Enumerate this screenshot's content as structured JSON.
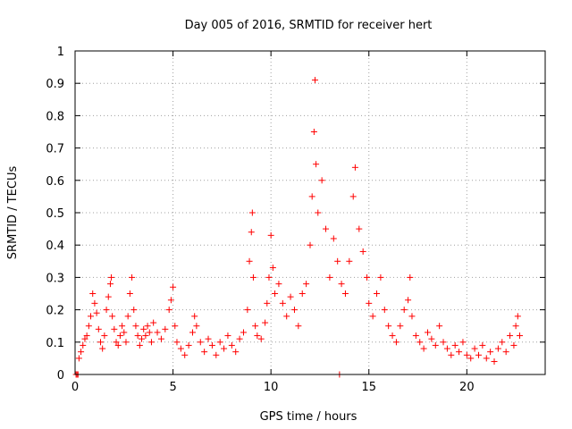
{
  "chart_data": {
    "type": "scatter",
    "title": "Day 005 of 2016, SRMTID for receiver hert",
    "xlabel": "GPS time / hours",
    "ylabel": "SRMTID / TECUs",
    "xlim": [
      0,
      24
    ],
    "ylim": [
      0,
      1
    ],
    "xticks": [
      0,
      5,
      10,
      15,
      20
    ],
    "yticks": [
      0,
      0.1,
      0.2,
      0.3,
      0.4,
      0.5,
      0.6,
      0.7,
      0.8,
      0.9,
      1
    ],
    "ytick_labels": [
      "0",
      "0.1",
      "0.2",
      "0.3",
      "0.4",
      "0.5",
      "0.6",
      "0.7",
      "0.8",
      "0.9",
      "1"
    ],
    "grid": true,
    "marker": "+",
    "color": "#ff0000",
    "series": [
      {
        "name": "SRMTID",
        "points": [
          [
            0.05,
            0.0
          ],
          [
            0.1,
            0.0
          ],
          [
            0.15,
            0.0
          ],
          [
            0.2,
            0.05
          ],
          [
            0.3,
            0.07
          ],
          [
            0.4,
            0.09
          ],
          [
            0.5,
            0.11
          ],
          [
            0.6,
            0.12
          ],
          [
            0.7,
            0.15
          ],
          [
            0.8,
            0.18
          ],
          [
            0.9,
            0.25
          ],
          [
            1.0,
            0.22
          ],
          [
            1.1,
            0.19
          ],
          [
            1.2,
            0.14
          ],
          [
            1.3,
            0.1
          ],
          [
            1.4,
            0.08
          ],
          [
            1.5,
            0.12
          ],
          [
            1.6,
            0.2
          ],
          [
            1.7,
            0.24
          ],
          [
            1.8,
            0.28
          ],
          [
            1.85,
            0.3
          ],
          [
            1.9,
            0.18
          ],
          [
            2.0,
            0.14
          ],
          [
            2.1,
            0.1
          ],
          [
            2.2,
            0.09
          ],
          [
            2.3,
            0.12
          ],
          [
            2.4,
            0.15
          ],
          [
            2.5,
            0.13
          ],
          [
            2.6,
            0.1
          ],
          [
            2.7,
            0.18
          ],
          [
            2.8,
            0.25
          ],
          [
            2.9,
            0.3
          ],
          [
            3.0,
            0.2
          ],
          [
            3.1,
            0.15
          ],
          [
            3.2,
            0.12
          ],
          [
            3.3,
            0.09
          ],
          [
            3.4,
            0.11
          ],
          [
            3.5,
            0.14
          ],
          [
            3.6,
            0.12
          ],
          [
            3.7,
            0.15
          ],
          [
            3.8,
            0.13
          ],
          [
            3.9,
            0.1
          ],
          [
            4.0,
            0.16
          ],
          [
            4.2,
            0.13
          ],
          [
            4.4,
            0.11
          ],
          [
            4.6,
            0.14
          ],
          [
            4.8,
            0.2
          ],
          [
            4.9,
            0.23
          ],
          [
            5.0,
            0.27
          ],
          [
            5.1,
            0.15
          ],
          [
            5.2,
            0.1
          ],
          [
            5.4,
            0.08
          ],
          [
            5.6,
            0.06
          ],
          [
            5.8,
            0.09
          ],
          [
            6.0,
            0.13
          ],
          [
            6.1,
            0.18
          ],
          [
            6.2,
            0.15
          ],
          [
            6.4,
            0.1
          ],
          [
            6.6,
            0.07
          ],
          [
            6.8,
            0.11
          ],
          [
            7.0,
            0.09
          ],
          [
            7.2,
            0.06
          ],
          [
            7.4,
            0.1
          ],
          [
            7.6,
            0.08
          ],
          [
            7.8,
            0.12
          ],
          [
            8.0,
            0.09
          ],
          [
            8.2,
            0.07
          ],
          [
            8.4,
            0.11
          ],
          [
            8.6,
            0.13
          ],
          [
            8.8,
            0.2
          ],
          [
            8.9,
            0.35
          ],
          [
            9.0,
            0.44
          ],
          [
            9.05,
            0.5
          ],
          [
            9.1,
            0.3
          ],
          [
            9.2,
            0.15
          ],
          [
            9.3,
            0.12
          ],
          [
            9.5,
            0.11
          ],
          [
            9.7,
            0.16
          ],
          [
            9.8,
            0.22
          ],
          [
            9.9,
            0.3
          ],
          [
            10.0,
            0.43
          ],
          [
            10.1,
            0.33
          ],
          [
            10.2,
            0.25
          ],
          [
            10.4,
            0.28
          ],
          [
            10.6,
            0.22
          ],
          [
            10.8,
            0.18
          ],
          [
            11.0,
            0.24
          ],
          [
            11.2,
            0.2
          ],
          [
            11.4,
            0.15
          ],
          [
            11.6,
            0.25
          ],
          [
            11.8,
            0.28
          ],
          [
            12.0,
            0.4
          ],
          [
            12.1,
            0.55
          ],
          [
            12.2,
            0.75
          ],
          [
            12.25,
            0.91
          ],
          [
            12.3,
            0.65
          ],
          [
            12.4,
            0.5
          ],
          [
            12.6,
            0.6
          ],
          [
            12.8,
            0.45
          ],
          [
            13.0,
            0.3
          ],
          [
            13.2,
            0.42
          ],
          [
            13.4,
            0.35
          ],
          [
            13.5,
            0.0
          ],
          [
            13.6,
            0.28
          ],
          [
            13.8,
            0.25
          ],
          [
            14.0,
            0.35
          ],
          [
            14.2,
            0.55
          ],
          [
            14.3,
            0.64
          ],
          [
            14.5,
            0.45
          ],
          [
            14.7,
            0.38
          ],
          [
            14.9,
            0.3
          ],
          [
            15.0,
            0.22
          ],
          [
            15.2,
            0.18
          ],
          [
            15.4,
            0.25
          ],
          [
            15.6,
            0.3
          ],
          [
            15.8,
            0.2
          ],
          [
            16.0,
            0.15
          ],
          [
            16.2,
            0.12
          ],
          [
            16.4,
            0.1
          ],
          [
            16.6,
            0.15
          ],
          [
            16.8,
            0.2
          ],
          [
            17.0,
            0.23
          ],
          [
            17.1,
            0.3
          ],
          [
            17.2,
            0.18
          ],
          [
            17.4,
            0.12
          ],
          [
            17.6,
            0.1
          ],
          [
            17.8,
            0.08
          ],
          [
            18.0,
            0.13
          ],
          [
            18.2,
            0.11
          ],
          [
            18.4,
            0.09
          ],
          [
            18.6,
            0.15
          ],
          [
            18.8,
            0.1
          ],
          [
            19.0,
            0.08
          ],
          [
            19.2,
            0.06
          ],
          [
            19.4,
            0.09
          ],
          [
            19.6,
            0.07
          ],
          [
            19.8,
            0.1
          ],
          [
            20.0,
            0.06
          ],
          [
            20.2,
            0.05
          ],
          [
            20.4,
            0.08
          ],
          [
            20.6,
            0.06
          ],
          [
            20.8,
            0.09
          ],
          [
            21.0,
            0.05
          ],
          [
            21.2,
            0.07
          ],
          [
            21.4,
            0.04
          ],
          [
            21.6,
            0.08
          ],
          [
            21.8,
            0.1
          ],
          [
            22.0,
            0.07
          ],
          [
            22.2,
            0.12
          ],
          [
            22.4,
            0.09
          ],
          [
            22.5,
            0.15
          ],
          [
            22.6,
            0.18
          ],
          [
            22.7,
            0.12
          ]
        ]
      }
    ]
  }
}
